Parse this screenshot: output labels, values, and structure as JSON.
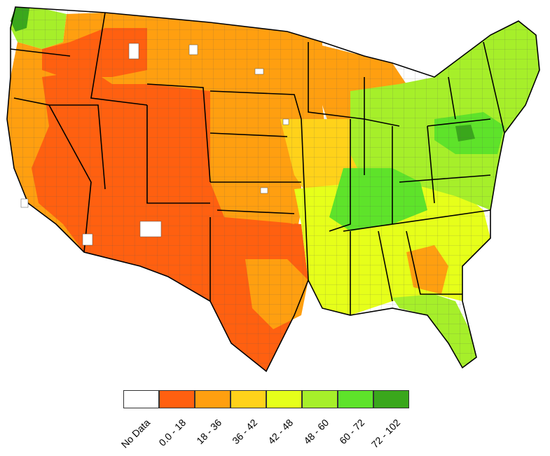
{
  "map": {
    "region": "contiguous-united-states",
    "borders": "counties and states"
  },
  "legend": {
    "items": [
      {
        "label": "No Data",
        "color": "#ffffff"
      },
      {
        "label": "0.0 - 18",
        "color": "#ff6010"
      },
      {
        "label": "18 - 36",
        "color": "#ff9f10"
      },
      {
        "label": "36 - 42",
        "color": "#ffd21a"
      },
      {
        "label": "42 - 48",
        "color": "#e6ff1a"
      },
      {
        "label": "48 - 60",
        "color": "#a6ef2a"
      },
      {
        "label": "60 - 72",
        "color": "#5ee32a"
      },
      {
        "label": "72 - 102",
        "color": "#3aa71c"
      }
    ]
  }
}
